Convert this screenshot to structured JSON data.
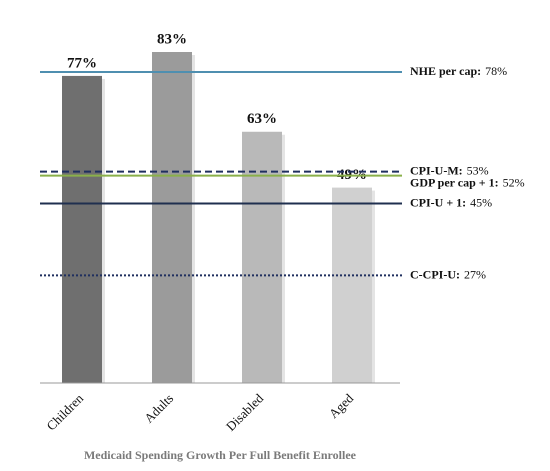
{
  "chart_data": {
    "type": "bar",
    "x_label": "Medicaid Spending Growth Per Full Benefit Enrollee",
    "categories": [
      "Children",
      "Adults",
      "Disabled",
      "Aged"
    ],
    "values": [
      77,
      83,
      63,
      49
    ],
    "value_labels": [
      "77%",
      "83%",
      "63%",
      "49%"
    ],
    "colors": [
      "#6f6f6f",
      "#9b9b9b",
      "#b9b9b9",
      "#d0d0d0"
    ],
    "reference_lines": [
      {
        "name": "NHE per cap:",
        "value": 78,
        "value_label": "78%",
        "color": "#4f8fb0",
        "style": "solid"
      },
      {
        "name": "CPI-U-M:",
        "value": 53,
        "value_label": "53%",
        "color": "#1f2f5f",
        "style": "dashed"
      },
      {
        "name": "GDP per cap + 1:",
        "value": 52,
        "value_label": "52%",
        "color": "#8ab04a",
        "style": "solid"
      },
      {
        "name": "CPI-U + 1:",
        "value": 45,
        "value_label": "45%",
        "color": "#1f2f4f",
        "style": "solid"
      },
      {
        "name": "C-CPI-U:",
        "value": 27,
        "value_label": "27%",
        "color": "#1f2f5f",
        "style": "dotted"
      }
    ]
  }
}
